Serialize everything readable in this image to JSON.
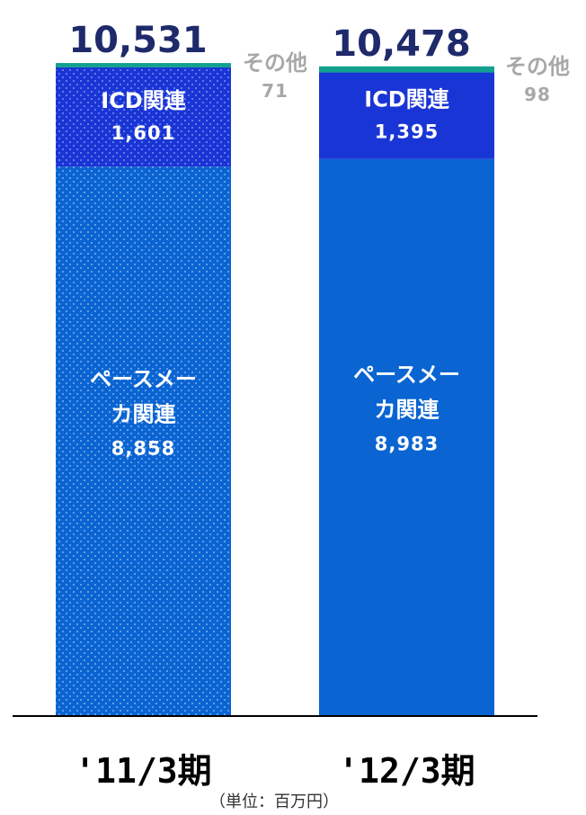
{
  "chart_data": {
    "type": "bar",
    "stacked": true,
    "categories": [
      "'11/3期",
      "'12/3期"
    ],
    "totals": [
      "10,531",
      "10,478"
    ],
    "series": [
      {
        "name": "ペースメーカ関連",
        "values": [
          8858,
          8983
        ],
        "labels": [
          "8,858",
          "8,983"
        ],
        "color": "#0a64d2"
      },
      {
        "name": "ICD関連",
        "values": [
          1601,
          1395
        ],
        "labels": [
          "1,601",
          "1,395"
        ],
        "color": "#1a35d6"
      },
      {
        "name": "その他",
        "values": [
          71,
          98
        ],
        "labels": [
          "71",
          "98"
        ],
        "color": "#12a08f"
      }
    ],
    "segment_label_lines": {
      "pacemaker": [
        "ペースメー",
        "カ関連"
      ],
      "icd": [
        "ICD関連"
      ],
      "other": [
        "その他"
      ]
    },
    "unit_note": "（単位：百万円）",
    "ylim": [
      0,
      10531
    ],
    "grid": false,
    "legend": "none",
    "pattern_on_first_bar": "dotted"
  }
}
